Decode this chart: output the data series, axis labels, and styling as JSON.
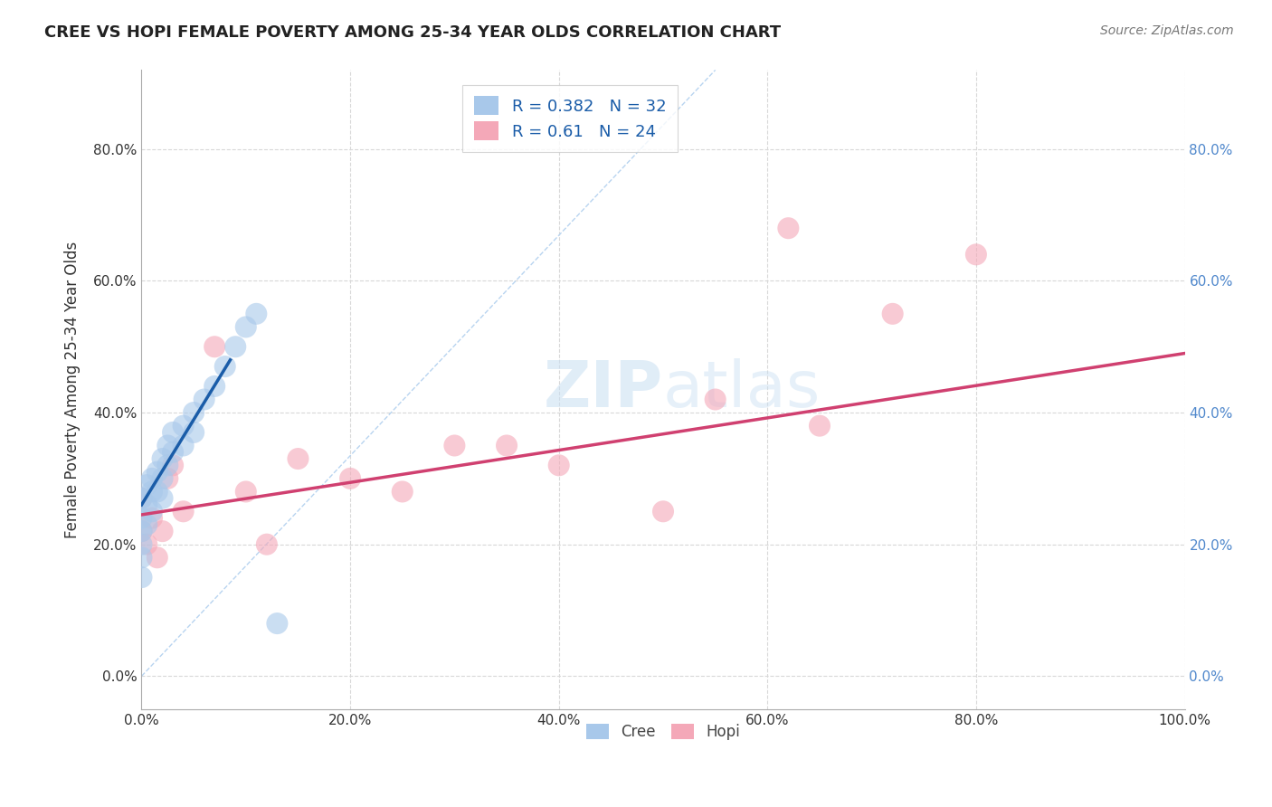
{
  "title": "CREE VS HOPI FEMALE POVERTY AMONG 25-34 YEAR OLDS CORRELATION CHART",
  "source": "Source: ZipAtlas.com",
  "ylabel": "Female Poverty Among 25-34 Year Olds",
  "xlim": [
    0.0,
    1.0
  ],
  "ylim": [
    -0.05,
    0.92
  ],
  "xticks": [
    0.0,
    0.2,
    0.4,
    0.6,
    0.8,
    1.0
  ],
  "yticks": [
    0.0,
    0.2,
    0.4,
    0.6,
    0.8
  ],
  "xtick_labels": [
    "0.0%",
    "20.0%",
    "40.0%",
    "60.0%",
    "80.0%",
    "100.0%"
  ],
  "ytick_labels": [
    "0.0%",
    "20.0%",
    "40.0%",
    "60.0%",
    "80.0%"
  ],
  "cree_R": 0.382,
  "cree_N": 32,
  "hopi_R": 0.61,
  "hopi_N": 24,
  "cree_color": "#a8c8ea",
  "hopi_color": "#f4a8b8",
  "cree_line_color": "#1a5ca8",
  "hopi_line_color": "#d04070",
  "diagonal_color": "#b8d4f0",
  "grid_color": "#d8d8d8",
  "background_color": "#ffffff",
  "watermark_text": "ZIPatlas",
  "cree_x": [
    0.0,
    0.0,
    0.0,
    0.0,
    0.0,
    0.0,
    0.005,
    0.005,
    0.005,
    0.01,
    0.01,
    0.01,
    0.015,
    0.015,
    0.02,
    0.02,
    0.02,
    0.025,
    0.025,
    0.03,
    0.03,
    0.04,
    0.04,
    0.05,
    0.05,
    0.06,
    0.07,
    0.08,
    0.09,
    0.1,
    0.11,
    0.13
  ],
  "cree_y": [
    0.27,
    0.24,
    0.22,
    0.2,
    0.18,
    0.15,
    0.29,
    0.26,
    0.23,
    0.3,
    0.28,
    0.25,
    0.31,
    0.28,
    0.33,
    0.3,
    0.27,
    0.35,
    0.32,
    0.37,
    0.34,
    0.38,
    0.35,
    0.4,
    0.37,
    0.42,
    0.44,
    0.47,
    0.5,
    0.53,
    0.55,
    0.08
  ],
  "hopi_x": [
    0.0,
    0.0,
    0.005,
    0.01,
    0.015,
    0.02,
    0.025,
    0.03,
    0.04,
    0.07,
    0.1,
    0.12,
    0.15,
    0.2,
    0.25,
    0.3,
    0.35,
    0.4,
    0.5,
    0.55,
    0.62,
    0.65,
    0.72,
    0.8
  ],
  "hopi_y": [
    0.27,
    0.22,
    0.2,
    0.24,
    0.18,
    0.22,
    0.3,
    0.32,
    0.25,
    0.5,
    0.28,
    0.2,
    0.33,
    0.3,
    0.28,
    0.35,
    0.35,
    0.32,
    0.25,
    0.42,
    0.68,
    0.38,
    0.55,
    0.64
  ],
  "cree_trend_x0": 0.0,
  "cree_trend_y0": 0.26,
  "cree_trend_x1": 0.085,
  "cree_trend_y1": 0.48,
  "hopi_trend_x0": 0.0,
  "hopi_trend_y0": 0.245,
  "hopi_trend_x1": 1.0,
  "hopi_trend_y1": 0.49
}
